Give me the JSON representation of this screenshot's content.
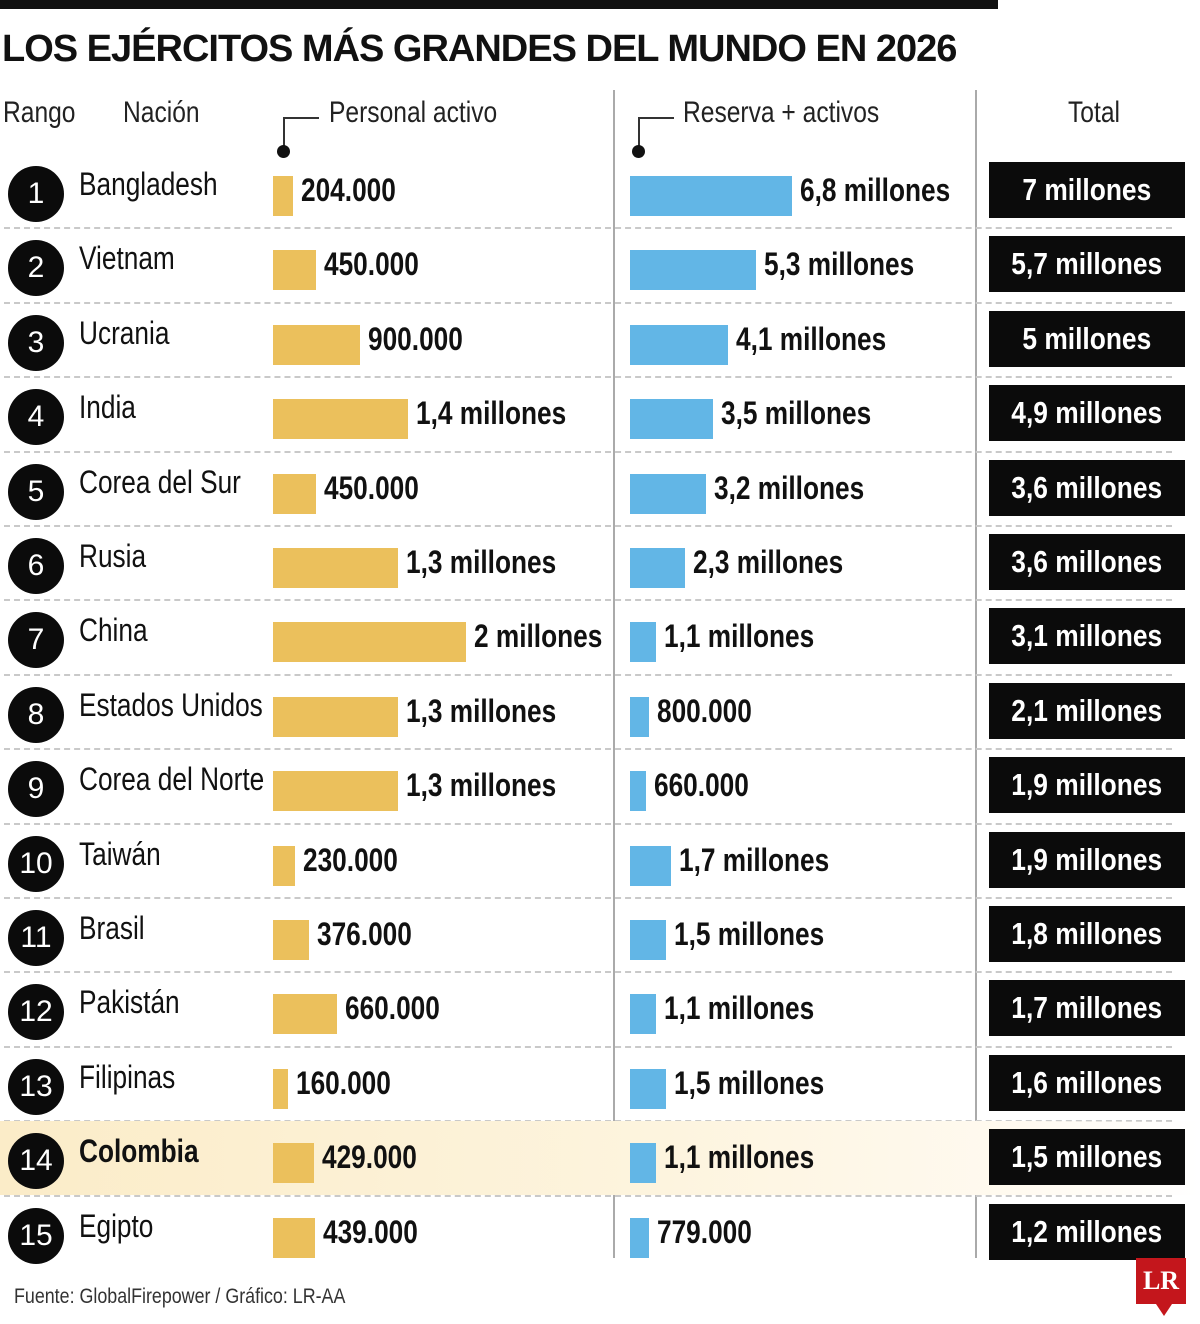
{
  "title": "LOS EJÉRCITOS MÁS GRANDES DEL MUNDO EN 2026",
  "headers": {
    "rank": "Rango",
    "nation": "Nación",
    "active": "Personal activo",
    "reserve": "Reserva + activos",
    "total": "Total"
  },
  "source": "Fuente: GlobalFirepower / Gráfico: LR-AA",
  "logo": "LR",
  "colors": {
    "active": "#ebc05c",
    "reserve": "#62b6e6",
    "highlight": "#fbecc8"
  },
  "chart_data": {
    "type": "bar",
    "title": "LOS EJÉRCITOS MÁS GRANDES DEL MUNDO EN 2026",
    "highlight": "Colombia",
    "rows": [
      {
        "rank": "1",
        "nation": "Bangladesh",
        "active": 204000,
        "active_label": "204.000",
        "reserve": 6800000,
        "reserve_label": "6,8 millones",
        "total_label": "7 millones"
      },
      {
        "rank": "2",
        "nation": "Vietnam",
        "active": 450000,
        "active_label": "450.000",
        "reserve": 5300000,
        "reserve_label": "5,3 millones",
        "total_label": "5,7 millones"
      },
      {
        "rank": "3",
        "nation": "Ucrania",
        "active": 900000,
        "active_label": "900.000",
        "reserve": 4100000,
        "reserve_label": "4,1 millones",
        "total_label": "5 millones"
      },
      {
        "rank": "4",
        "nation": "India",
        "active": 1400000,
        "active_label": "1,4 millones",
        "reserve": 3500000,
        "reserve_label": "3,5 millones",
        "total_label": "4,9 millones"
      },
      {
        "rank": "5",
        "nation": "Corea del Sur",
        "active": 450000,
        "active_label": "450.000",
        "reserve": 3200000,
        "reserve_label": "3,2 millones",
        "total_label": "3,6 millones"
      },
      {
        "rank": "6",
        "nation": "Rusia",
        "active": 1300000,
        "active_label": "1,3 millones",
        "reserve": 2300000,
        "reserve_label": "2,3 millones",
        "total_label": "3,6 millones"
      },
      {
        "rank": "7",
        "nation": "China",
        "active": 2000000,
        "active_label": "2 millones",
        "reserve": 1100000,
        "reserve_label": "1,1 millones",
        "total_label": "3,1 millones"
      },
      {
        "rank": "8",
        "nation": "Estados Unidos",
        "active": 1300000,
        "active_label": "1,3 millones",
        "reserve": 800000,
        "reserve_label": "800.000",
        "total_label": "2,1 millones"
      },
      {
        "rank": "9",
        "nation": "Corea del Norte",
        "active": 1300000,
        "active_label": "1,3 millones",
        "reserve": 660000,
        "reserve_label": "660.000",
        "total_label": "1,9 millones"
      },
      {
        "rank": "10",
        "nation": "Taiwán",
        "active": 230000,
        "active_label": "230.000",
        "reserve": 1700000,
        "reserve_label": "1,7 millones",
        "total_label": "1,9 millones"
      },
      {
        "rank": "11",
        "nation": "Brasil",
        "active": 376000,
        "active_label": "376.000",
        "reserve": 1500000,
        "reserve_label": "1,5 millones",
        "total_label": "1,8 millones"
      },
      {
        "rank": "12",
        "nation": "Pakistán",
        "active": 660000,
        "active_label": "660.000",
        "reserve": 1100000,
        "reserve_label": "1,1 millones",
        "total_label": "1,7 millones"
      },
      {
        "rank": "13",
        "nation": "Filipinas",
        "active": 160000,
        "active_label": "160.000",
        "reserve": 1500000,
        "reserve_label": "1,5 millones",
        "total_label": "1,6 millones"
      },
      {
        "rank": "14",
        "nation": "Colombia",
        "active": 429000,
        "active_label": "429.000",
        "reserve": 1100000,
        "reserve_label": "1,1 millones",
        "total_label": "1,5 millones"
      },
      {
        "rank": "15",
        "nation": "Egipto",
        "active": 439000,
        "active_label": "439.000",
        "reserve": 779000,
        "reserve_label": "779.000",
        "total_label": "1,2 millones"
      }
    ]
  }
}
